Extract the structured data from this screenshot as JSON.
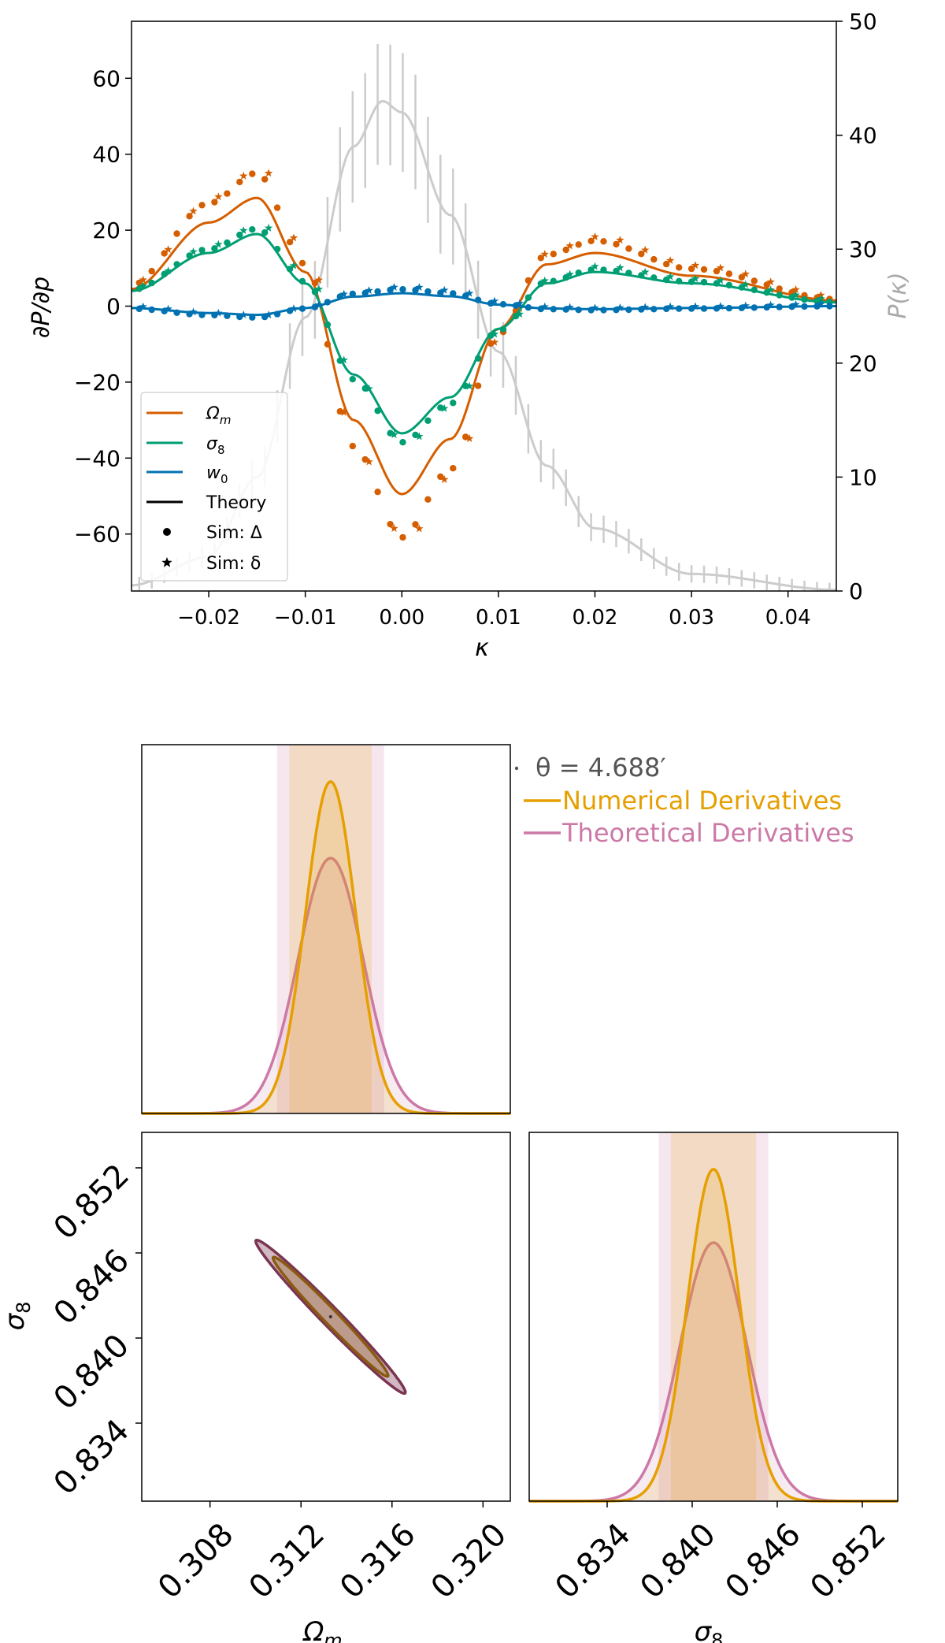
{
  "chart_data": [
    {
      "type": "line",
      "xlabel": "κ",
      "ylabel": "∂P/∂p",
      "y2label": "P(κ)",
      "xlim": [
        -0.028,
        0.045
      ],
      "ylim": [
        -75,
        75
      ],
      "y2lim": [
        0,
        50
      ],
      "xticks": [
        "−0.02",
        "−0.01",
        "0.00",
        "0.01",
        "0.02",
        "0.03",
        "0.04"
      ],
      "yticks": [
        "60",
        "40",
        "20",
        "0",
        "−20",
        "−40",
        "−60"
      ],
      "y2ticks": [
        "50",
        "40",
        "30",
        "20",
        "10",
        "0"
      ],
      "legend_position": "lower-left",
      "legend": [
        "Ω",
        "σ",
        "w",
        "Theory",
        "Sim: Δ",
        "Sim: δ"
      ],
      "legend_subscripts": [
        "m",
        "8",
        "0"
      ],
      "series": [
        {
          "name": "Ωm",
          "color": "#d55e00",
          "style": "theory line + sim markers",
          "x": [
            -0.028,
            -0.02,
            -0.015,
            -0.01,
            -0.005,
            0.0,
            0.005,
            0.01,
            0.015,
            0.02,
            0.03,
            0.045
          ],
          "y": [
            4.5,
            22,
            28.5,
            9,
            -30,
            -49.5,
            -35,
            -6,
            11,
            14,
            8,
            1.5
          ]
        },
        {
          "name": "σ8",
          "color": "#009e73",
          "style": "theory line + sim markers",
          "x": [
            -0.028,
            -0.02,
            -0.015,
            -0.01,
            -0.005,
            0.0,
            0.005,
            0.01,
            0.015,
            0.02,
            0.03,
            0.045
          ],
          "y": [
            4,
            14,
            19,
            6,
            -18,
            -33.5,
            -24,
            -6,
            6,
            9,
            6,
            1
          ]
        },
        {
          "name": "w0",
          "color": "#0072b2",
          "style": "theory line + sim markers",
          "x": [
            -0.028,
            -0.02,
            -0.015,
            -0.01,
            -0.005,
            0.0,
            0.005,
            0.01,
            0.015,
            0.02,
            0.03,
            0.045
          ],
          "y": [
            -0.5,
            -1.8,
            -2.3,
            -0.5,
            2.5,
            3.4,
            2.6,
            0.4,
            -0.6,
            -0.8,
            -0.5,
            0
          ]
        },
        {
          "name": "P(κ)",
          "color": "#cccccc",
          "axis": "right",
          "style": "line + error bars",
          "x": [
            -0.028,
            -0.02,
            -0.015,
            -0.01,
            -0.005,
            -0.002,
            0.0,
            0.005,
            0.01,
            0.015,
            0.02,
            0.03,
            0.045
          ],
          "y": [
            0.5,
            3,
            10,
            24,
            39,
            43,
            42,
            33,
            21,
            11,
            5.5,
            1.5,
            0.1
          ]
        }
      ]
    },
    {
      "type": "corner",
      "legend": [
        "θ = 4.688′",
        "Numerical Derivatives",
        "Theoretical Derivatives"
      ],
      "series": [
        {
          "name": "Numerical Derivatives",
          "color": "#e69f00",
          "omega_m": {
            "mean": 0.3133,
            "sigma": 0.0011
          },
          "sigma_8": {
            "mean": 0.8415,
            "sigma": 0.00183
          }
        },
        {
          "name": "Theoretical Derivatives",
          "color": "#cc79a7",
          "omega_m": {
            "mean": 0.3133,
            "sigma": 0.00143
          },
          "sigma_8": {
            "mean": 0.8415,
            "sigma": 0.00235
          }
        }
      ],
      "omega_m_range": [
        0.305,
        0.3212
      ],
      "sigma_8_range": [
        0.8285,
        0.8545
      ],
      "omega_m_ticks": [
        "0.308",
        "0.312",
        "0.316",
        "0.320"
      ],
      "sigma_8_ticks": [
        "0.834",
        "0.840",
        "0.846",
        "0.852"
      ],
      "xlabel_left": "Ω",
      "xlabel_right": "σ",
      "ylabel": "σ",
      "label_subscripts": [
        "m",
        "8",
        "8"
      ]
    }
  ]
}
